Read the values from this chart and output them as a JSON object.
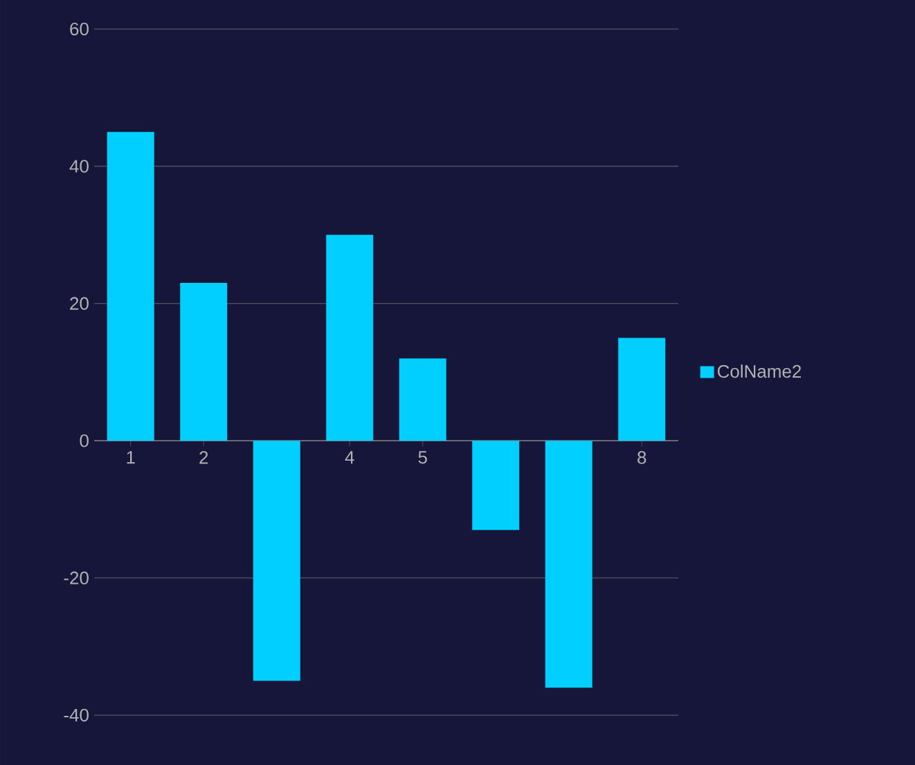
{
  "chart_data": {
    "type": "bar",
    "categories": [
      "1",
      "2",
      null,
      "4",
      "5",
      null,
      null,
      "8"
    ],
    "series": [
      {
        "name": "ColName2",
        "color": "#00cfff",
        "values": [
          45,
          23,
          -35,
          30,
          12,
          -13,
          -36,
          15
        ]
      }
    ],
    "ylim": [
      -40,
      60
    ],
    "yticks": [
      -40,
      -20,
      0,
      20,
      40,
      60
    ],
    "grid": "y",
    "legend": "right"
  }
}
